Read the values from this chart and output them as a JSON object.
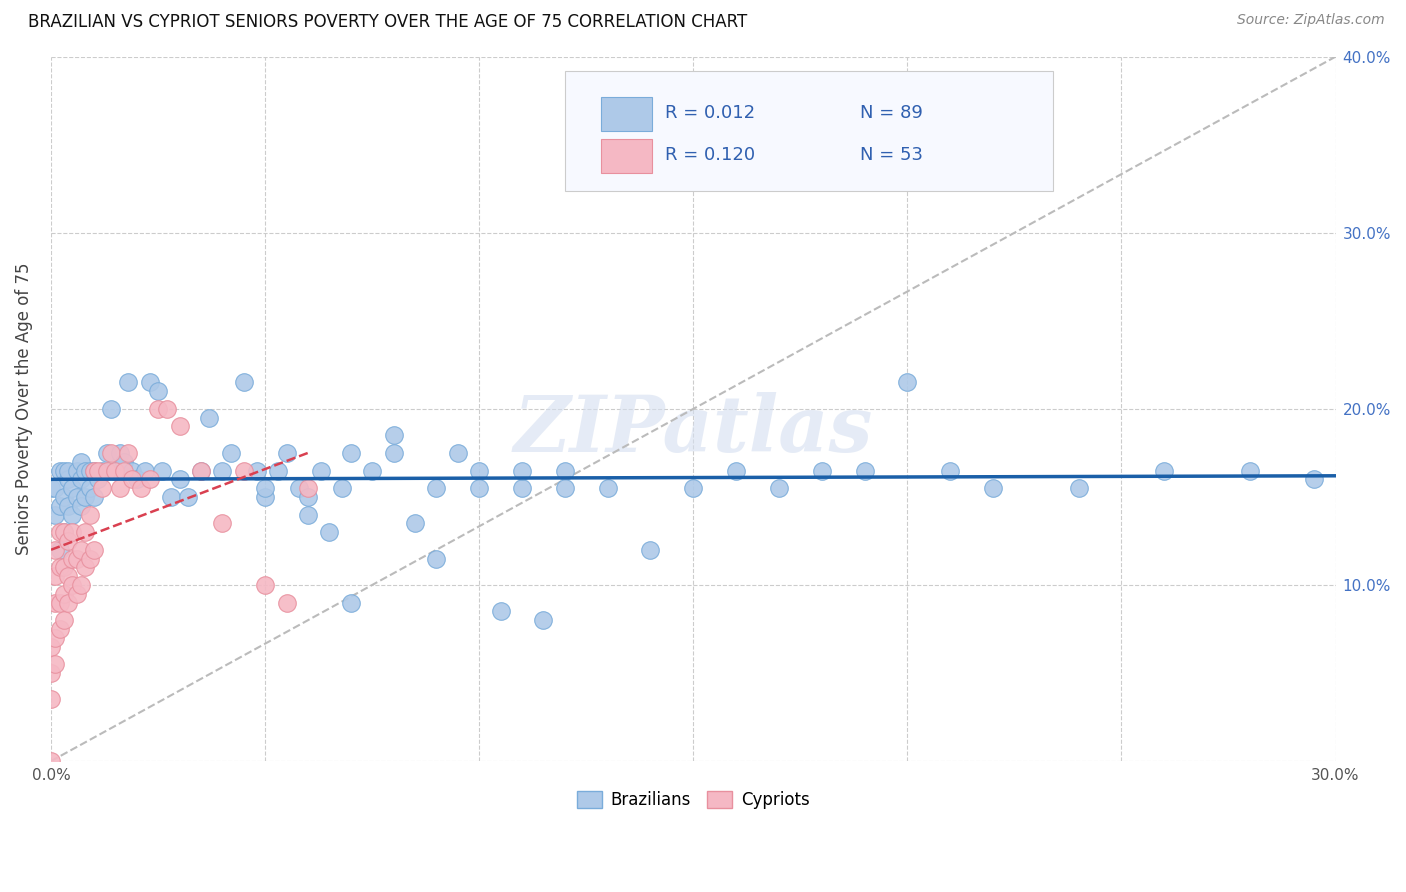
{
  "title": "BRAZILIAN VS CYPRIOT SENIORS POVERTY OVER THE AGE OF 75 CORRELATION CHART",
  "source": "Source: ZipAtlas.com",
  "ylabel": "Seniors Poverty Over the Age of 75",
  "xlim": [
    0.0,
    0.3
  ],
  "ylim": [
    0.0,
    0.4
  ],
  "xtick_vals": [
    0.0,
    0.3
  ],
  "xtick_labels": [
    "0.0%",
    "30.0%"
  ],
  "ytick_vals": [
    0.0,
    0.1,
    0.2,
    0.3,
    0.4
  ],
  "ytick_labels_right": [
    "",
    "10.0%",
    "20.0%",
    "30.0%",
    "40.0%"
  ],
  "grid_vals": [
    0.0,
    0.05,
    0.1,
    0.15,
    0.2,
    0.25,
    0.3
  ],
  "brazil_color": "#AEC9E8",
  "cyprus_color": "#F5B8C4",
  "brazil_edge": "#7AACDA",
  "cyprus_edge": "#E8909E",
  "brazil_line_color": "#1A5FA8",
  "cyprus_line_color": "#D94050",
  "ref_line_color": "#BBBBBB",
  "legend_text_color": "#3060B0",
  "R_brazil": 0.012,
  "N_brazil": 89,
  "R_cyprus": 0.12,
  "N_cyprus": 53,
  "watermark": "ZIPatlas",
  "brazil_x": [
    0.0,
    0.001,
    0.001,
    0.002,
    0.002,
    0.002,
    0.003,
    0.003,
    0.003,
    0.004,
    0.004,
    0.004,
    0.005,
    0.005,
    0.006,
    0.006,
    0.007,
    0.007,
    0.007,
    0.008,
    0.008,
    0.009,
    0.009,
    0.01,
    0.01,
    0.011,
    0.012,
    0.013,
    0.014,
    0.015,
    0.016,
    0.017,
    0.018,
    0.019,
    0.02,
    0.022,
    0.023,
    0.025,
    0.026,
    0.028,
    0.03,
    0.032,
    0.035,
    0.037,
    0.04,
    0.042,
    0.045,
    0.048,
    0.05,
    0.053,
    0.055,
    0.058,
    0.06,
    0.063,
    0.065,
    0.068,
    0.07,
    0.075,
    0.08,
    0.085,
    0.09,
    0.095,
    0.1,
    0.105,
    0.11,
    0.115,
    0.12,
    0.13,
    0.14,
    0.15,
    0.16,
    0.17,
    0.18,
    0.19,
    0.2,
    0.21,
    0.22,
    0.24,
    0.26,
    0.28,
    0.295,
    0.05,
    0.06,
    0.07,
    0.08,
    0.09,
    0.1,
    0.11,
    0.12
  ],
  "brazil_y": [
    0.155,
    0.14,
    0.155,
    0.12,
    0.145,
    0.165,
    0.13,
    0.15,
    0.165,
    0.145,
    0.16,
    0.165,
    0.14,
    0.155,
    0.15,
    0.165,
    0.16,
    0.145,
    0.17,
    0.15,
    0.165,
    0.155,
    0.165,
    0.15,
    0.165,
    0.16,
    0.165,
    0.175,
    0.2,
    0.165,
    0.175,
    0.17,
    0.215,
    0.165,
    0.16,
    0.165,
    0.215,
    0.21,
    0.165,
    0.15,
    0.16,
    0.15,
    0.165,
    0.195,
    0.165,
    0.175,
    0.215,
    0.165,
    0.15,
    0.165,
    0.175,
    0.155,
    0.14,
    0.165,
    0.13,
    0.155,
    0.175,
    0.165,
    0.185,
    0.135,
    0.155,
    0.175,
    0.165,
    0.085,
    0.155,
    0.08,
    0.165,
    0.155,
    0.12,
    0.155,
    0.165,
    0.155,
    0.165,
    0.165,
    0.215,
    0.165,
    0.155,
    0.155,
    0.165,
    0.165,
    0.16,
    0.155,
    0.15,
    0.09,
    0.175,
    0.115,
    0.155,
    0.165,
    0.155
  ],
  "cyprus_x": [
    0.0,
    0.0,
    0.0,
    0.0,
    0.001,
    0.001,
    0.001,
    0.001,
    0.001,
    0.002,
    0.002,
    0.002,
    0.002,
    0.003,
    0.003,
    0.003,
    0.003,
    0.004,
    0.004,
    0.004,
    0.005,
    0.005,
    0.005,
    0.006,
    0.006,
    0.007,
    0.007,
    0.008,
    0.008,
    0.009,
    0.009,
    0.01,
    0.01,
    0.011,
    0.012,
    0.013,
    0.014,
    0.015,
    0.016,
    0.017,
    0.018,
    0.019,
    0.021,
    0.023,
    0.025,
    0.027,
    0.03,
    0.035,
    0.04,
    0.045,
    0.05,
    0.055,
    0.06
  ],
  "cyprus_y": [
    0.0,
    0.035,
    0.05,
    0.065,
    0.055,
    0.07,
    0.09,
    0.105,
    0.12,
    0.075,
    0.09,
    0.11,
    0.13,
    0.08,
    0.095,
    0.11,
    0.13,
    0.09,
    0.105,
    0.125,
    0.1,
    0.115,
    0.13,
    0.095,
    0.115,
    0.1,
    0.12,
    0.11,
    0.13,
    0.115,
    0.14,
    0.12,
    0.165,
    0.165,
    0.155,
    0.165,
    0.175,
    0.165,
    0.155,
    0.165,
    0.175,
    0.16,
    0.155,
    0.16,
    0.2,
    0.2,
    0.19,
    0.165,
    0.135,
    0.165,
    0.1,
    0.09,
    0.155
  ],
  "brazil_trend_x": [
    0.0,
    0.3
  ],
  "brazil_trend_y": [
    0.16,
    0.162
  ],
  "cyprus_trend_x": [
    0.0,
    0.06
  ],
  "cyprus_trend_y": [
    0.12,
    0.175
  ]
}
